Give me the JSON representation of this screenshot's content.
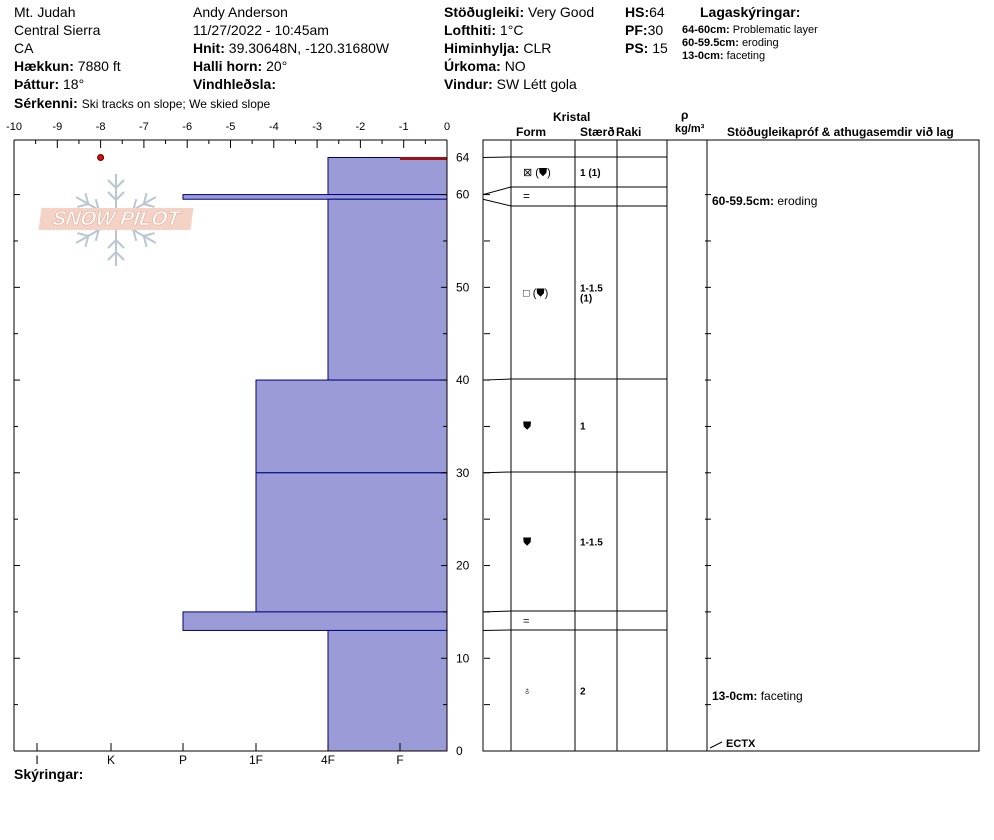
{
  "header": {
    "location": "Mt. Judah",
    "range": "Central Sierra",
    "state": "CA",
    "elevation_label": "Hækkun:",
    "elevation_value": "7880 ft",
    "aspect_label": "Þáttur:",
    "aspect_value": "18°",
    "features_label": "Sérkenni:",
    "features_value": "Ski tracks on slope; We skied slope",
    "observer": "Andy Anderson",
    "datetime": "11/27/2022 - 10:45am",
    "coords_label": "Hnit:",
    "coords_value": "39.30648N, -120.31680W",
    "slope_label": "Halli horn:",
    "slope_value": "20°",
    "wind_load_label": "Vindhleðsla:",
    "stability_label": "Stöðugleiki:",
    "stability_value": "Very Good",
    "air_temp_label": "Lofthiti:",
    "air_temp_value": "1°C",
    "sky_label": "Himinhylja:",
    "sky_value": "CLR",
    "precip_label": "Úrkoma:",
    "precip_value": "NO",
    "wind_label": "Vindur:",
    "wind_value": "SW Létt gola",
    "hs_label": "HS:",
    "hs_value": "64",
    "pf_label": "PF:",
    "pf_value": "30",
    "ps_label": "PS:",
    "ps_value": "15",
    "legend_title": "Lagaskýringar:",
    "legend": [
      {
        "range": "64-60cm:",
        "text": "Problematic layer"
      },
      {
        "range": "60-59.5cm:",
        "text": "eroding"
      },
      {
        "range": "13-0cm:",
        "text": "faceting"
      }
    ]
  },
  "logo": {
    "text": "SNOW PILOT"
  },
  "footer": {
    "label": "Skýringar:"
  },
  "table": {
    "kristal": "Kristal",
    "form": "Form",
    "size": "Stærð",
    "moisture": "Raki",
    "rho": "ρ",
    "density_unit": "kg/m³",
    "comments_header": "Stöðugleikapróf & athugasemdir við lag"
  },
  "colors": {
    "hardness_fill": "#9b9bd8",
    "hardness_stroke": "#00007a",
    "problem_line": "#a01010",
    "temp_point": "#d01010"
  },
  "chart_data": {
    "type": "snow_profile",
    "temp_axis": {
      "ticks": [
        "-10",
        "-9",
        "-8",
        "-7",
        "-6",
        "-5",
        "-4",
        "-3",
        "-2",
        "-1",
        "0"
      ],
      "range": [
        -10,
        0
      ]
    },
    "hardness_axis": {
      "ticks": [
        "I",
        "K",
        "P",
        "1F",
        "4F",
        "F"
      ]
    },
    "height_axis": {
      "ticks": [
        "64",
        "60",
        "50",
        "40",
        "30",
        "20",
        "10",
        "0"
      ],
      "range": [
        0,
        64
      ],
      "unit": "cm"
    },
    "hardness_layers": [
      {
        "top": 64,
        "bottom": 60,
        "hardness": "4F"
      },
      {
        "top": 60,
        "bottom": 59.5,
        "hardness": "P"
      },
      {
        "top": 59.5,
        "bottom": 40,
        "hardness": "4F"
      },
      {
        "top": 40,
        "bottom": 30,
        "hardness": "1F"
      },
      {
        "top": 30,
        "bottom": 15,
        "hardness": "1F"
      },
      {
        "top": 15,
        "bottom": 13,
        "hardness": "P"
      },
      {
        "top": 13,
        "bottom": 0,
        "hardness": "4F"
      }
    ],
    "temperature_points": [
      {
        "height": 64,
        "temp": -8
      }
    ],
    "crystal_layers": [
      {
        "top": 64,
        "bottom": 60,
        "form": "⊠ (⛊)",
        "size": "1 (1)"
      },
      {
        "top": 60,
        "bottom": 59.5,
        "form": "",
        "size": ""
      },
      {
        "top": 59.5,
        "bottom": 40,
        "form": "□ (⛊)",
        "size": "1-1.5\n(1)"
      },
      {
        "top": 40,
        "bottom": 30,
        "form": "⛊",
        "size": "1"
      },
      {
        "top": 30,
        "bottom": 15,
        "form": "⛊",
        "size": "1-1.5"
      },
      {
        "top": 15,
        "bottom": 13,
        "form": "=",
        "size": ""
      },
      {
        "top": 13,
        "bottom": 0,
        "form": "♁",
        "size": "2"
      }
    ],
    "comments": [
      {
        "height": 59.5,
        "label": "60-59.5cm:",
        "text": "eroding"
      },
      {
        "height": 6.5,
        "label": "13-0cm:",
        "text": "faceting"
      }
    ],
    "stability_tests": [
      {
        "height": 0.5,
        "text": "ECTX"
      }
    ]
  }
}
